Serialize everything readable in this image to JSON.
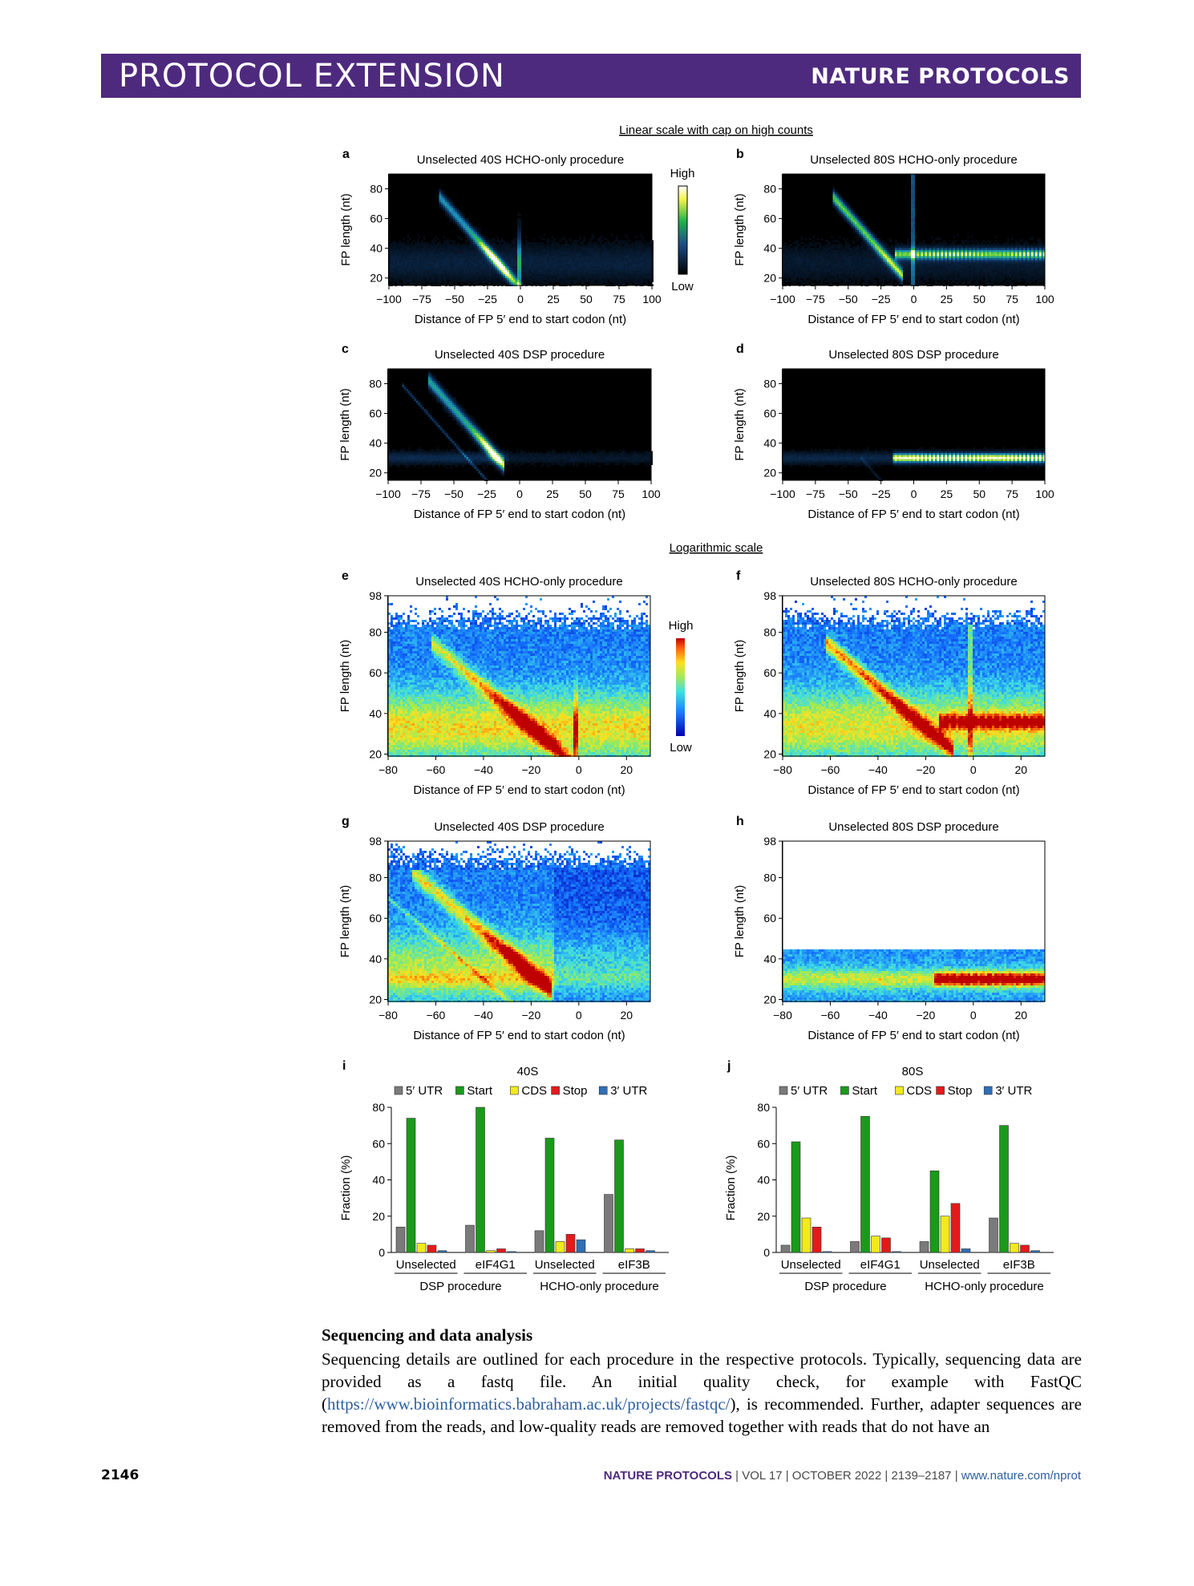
{
  "header": {
    "section": "PROTOCOL EXTENSION",
    "journal": "NATURE PROTOCOLS"
  },
  "figure": {
    "section_titles": {
      "linear": "Linear scale with cap on high counts",
      "log": "Logarithmic scale"
    },
    "colorbar_labels": {
      "high": "High",
      "low": "Low"
    },
    "colors": {
      "heatmap_background": "#000000",
      "banner": "#4e2a7e"
    },
    "heatmaps": [
      {
        "letter": "a",
        "title": "Unselected 40S HCHO-only procedure",
        "scale": "linear",
        "pattern": "40S-HCHO",
        "xlabel": "Distance of FP 5′ end to start codon (nt)",
        "ylabel": "FP length (nt)",
        "xticks": [
          "−100",
          "−75",
          "−50",
          "−25",
          "0",
          "25",
          "50",
          "75",
          "100"
        ],
        "yticks": [
          "80",
          "60",
          "40",
          "20"
        ]
      },
      {
        "letter": "b",
        "title": "Unselected 80S HCHO-only procedure",
        "scale": "linear",
        "pattern": "80S-HCHO",
        "xlabel": "Distance of FP 5′ end to start codon (nt)",
        "ylabel": "FP length (nt)",
        "xticks": [
          "−100",
          "−75",
          "−50",
          "−25",
          "0",
          "25",
          "50",
          "75",
          "100"
        ],
        "yticks": [
          "80",
          "60",
          "40",
          "20"
        ]
      },
      {
        "letter": "c",
        "title": "Unselected 40S DSP procedure",
        "scale": "linear",
        "pattern": "40S-DSP",
        "xlabel": "Distance of FP 5′ end to start codon (nt)",
        "ylabel": "FP length (nt)",
        "xticks": [
          "−100",
          "−75",
          "−50",
          "−25",
          "0",
          "25",
          "50",
          "75",
          "100"
        ],
        "yticks": [
          "80",
          "60",
          "40",
          "20"
        ]
      },
      {
        "letter": "d",
        "title": "Unselected 80S DSP procedure",
        "scale": "linear",
        "pattern": "80S-DSP",
        "xlabel": "Distance of FP 5′ end to start codon (nt)",
        "ylabel": "FP length (nt)",
        "xticks": [
          "−100",
          "−75",
          "−50",
          "−25",
          "0",
          "25",
          "50",
          "75",
          "100"
        ],
        "yticks": [
          "80",
          "60",
          "40",
          "20"
        ]
      },
      {
        "letter": "e",
        "title": "Unselected 40S HCHO-only procedure",
        "scale": "log",
        "pattern": "40S-HCHO",
        "xlabel": "Distance of FP 5′ end to start codon (nt)",
        "ylabel": "FP length (nt)",
        "xticks": [
          "−80",
          "−60",
          "−40",
          "−20",
          "0",
          "20"
        ],
        "yticks": [
          "98",
          "80",
          "60",
          "40",
          "20"
        ]
      },
      {
        "letter": "f",
        "title": "Unselected 80S HCHO-only procedure",
        "scale": "log",
        "pattern": "80S-HCHO",
        "xlabel": "Distance of FP 5′ end to start codon (nt)",
        "ylabel": "FP length (nt)",
        "xticks": [
          "−80",
          "−60",
          "−40",
          "−20",
          "0",
          "20"
        ],
        "yticks": [
          "98",
          "80",
          "60",
          "40",
          "20"
        ]
      },
      {
        "letter": "g",
        "title": "Unselected 40S DSP procedure",
        "scale": "log",
        "pattern": "40S-DSP",
        "xlabel": "Distance of FP 5′ end to start codon (nt)",
        "ylabel": "FP length (nt)",
        "xticks": [
          "−80",
          "−60",
          "−40",
          "−20",
          "0",
          "20"
        ],
        "yticks": [
          "98",
          "80",
          "60",
          "40",
          "20"
        ]
      },
      {
        "letter": "h",
        "title": "Unselected 80S DSP procedure",
        "scale": "log",
        "pattern": "80S-DSP",
        "xlabel": "Distance of FP 5′ end to start codon (nt)",
        "ylabel": "FP length (nt)",
        "xticks": [
          "−80",
          "−60",
          "−40",
          "−20",
          "0",
          "20"
        ],
        "yticks": [
          "98",
          "80",
          "60",
          "40",
          "20"
        ]
      }
    ]
  },
  "chart_data": [
    {
      "panel": "i",
      "type": "bar",
      "title": "40S",
      "ylabel": "Fraction (%)",
      "ylim": [
        0,
        80
      ],
      "yticks": [
        "0",
        "20",
        "40",
        "60",
        "80"
      ],
      "legend_position": "top",
      "categories": [
        "Unselected",
        "eIF4G1",
        "Unselected",
        "eIF3B"
      ],
      "groups": [
        "DSP procedure",
        "HCHO-only procedure"
      ],
      "series": [
        {
          "name": "5′ UTR",
          "color": "#7a7a7a",
          "values": [
            14,
            15,
            12,
            32
          ]
        },
        {
          "name": "Start",
          "color": "#1a9a1a",
          "values": [
            74,
            80,
            63,
            62
          ]
        },
        {
          "name": "CDS",
          "color": "#f2ea1a",
          "values": [
            5,
            1,
            6,
            2
          ]
        },
        {
          "name": "Stop",
          "color": "#e41a1a",
          "values": [
            4,
            2,
            10,
            2
          ]
        },
        {
          "name": "3′ UTR",
          "color": "#2f6fb5",
          "values": [
            1,
            0.5,
            7,
            1
          ]
        }
      ]
    },
    {
      "panel": "j",
      "type": "bar",
      "title": "80S",
      "ylabel": "Fraction (%)",
      "ylim": [
        0,
        80
      ],
      "yticks": [
        "0",
        "20",
        "40",
        "60",
        "80"
      ],
      "legend_position": "top",
      "categories": [
        "Unselected",
        "eIF4G1",
        "Unselected",
        "eIF3B"
      ],
      "groups": [
        "DSP procedure",
        "HCHO-only procedure"
      ],
      "series": [
        {
          "name": "5′ UTR",
          "color": "#7a7a7a",
          "values": [
            4,
            6,
            6,
            19
          ]
        },
        {
          "name": "Start",
          "color": "#1a9a1a",
          "values": [
            61,
            75,
            45,
            70
          ]
        },
        {
          "name": "CDS",
          "color": "#f2ea1a",
          "values": [
            19,
            9,
            20,
            5
          ]
        },
        {
          "name": "Stop",
          "color": "#e41a1a",
          "values": [
            14,
            8,
            27,
            4
          ]
        },
        {
          "name": "3′ UTR",
          "color": "#2f6fb5",
          "values": [
            0.5,
            0.5,
            2,
            1
          ]
        }
      ]
    }
  ],
  "text": {
    "heading": "Sequencing and data analysis",
    "before_link": "Sequencing details are outlined for each procedure in the respective protocols. Typically, sequencing data are provided as a fastq file. An initial quality check, for example with FastQC (",
    "link": "https://www.bioinformatics.babraham.ac.uk/projects/fastqc/",
    "after_link": "), is recommended. Further, adapter sequences are removed from the reads, and low-quality reads are removed together with reads that do not have an"
  },
  "footer": {
    "page_number": "2146",
    "journal": "NATURE PROTOCOLS",
    "citation": " | VOL 17 | OCTOBER 2022 | 2139–2187 | ",
    "url": "www.nature.com/nprot"
  }
}
